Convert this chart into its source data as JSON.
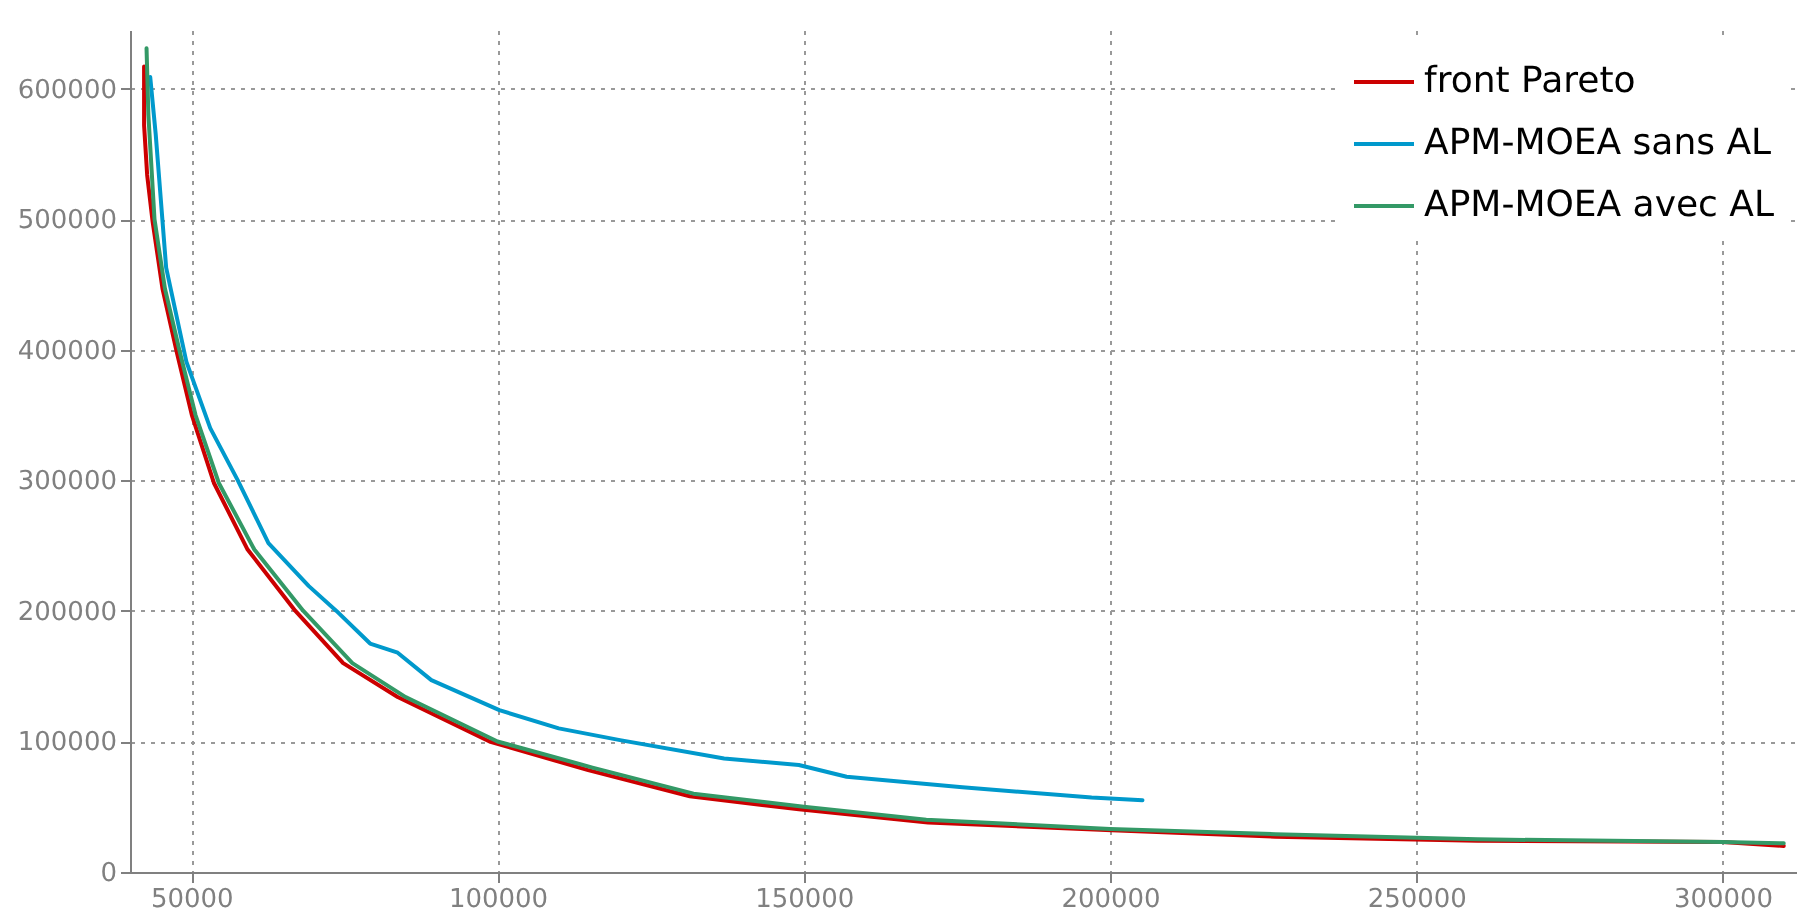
{
  "chart_data": {
    "type": "line",
    "xlim": [
      40000,
      312000
    ],
    "ylim": [
      0,
      645000
    ],
    "xticks": [
      50000,
      100000,
      150000,
      200000,
      250000,
      300000
    ],
    "yticks": [
      0,
      100000,
      200000,
      300000,
      400000,
      500000,
      600000
    ],
    "grid": true,
    "legend": "top right",
    "line_style": "solid",
    "marker": "none",
    "series": [
      {
        "name": "front Pareto",
        "color": "#cc0000",
        "x": [
          42300,
          42300,
          42800,
          43700,
          45300,
          47700,
          50100,
          53700,
          59200,
          67000,
          74800,
          83700,
          98700,
          114800,
          131400,
          149200,
          170300,
          200300,
          227000,
          260000,
          300000,
          310000
        ],
        "values": [
          617000,
          572000,
          534000,
          498000,
          447000,
          397000,
          350000,
          298000,
          247000,
          200000,
          160000,
          134000,
          100000,
          78000,
          58000,
          48000,
          38000,
          32000,
          27000,
          24000,
          23000,
          20000
        ]
      },
      {
        "name": "APM-MOEA sans AL",
        "color": "#0099cc",
        "x": [
          43300,
          44200,
          45900,
          49200,
          53100,
          57600,
          62600,
          69200,
          73700,
          79200,
          83700,
          89200,
          100300,
          110000,
          120000,
          137000,
          149200,
          157000,
          175900,
          197000,
          205300
        ],
        "values": [
          609000,
          565000,
          463000,
          391000,
          340000,
          300000,
          252000,
          219000,
          200000,
          175000,
          168000,
          147000,
          124000,
          110000,
          101000,
          87000,
          82000,
          73000,
          65000,
          57000,
          55000
        ]
      },
      {
        "name": "APM-MOEA avec AL",
        "color": "#339966",
        "x": [
          42700,
          43000,
          44000,
          45700,
          48200,
          50700,
          54500,
          60300,
          68300,
          76300,
          85000,
          100000,
          115500,
          132000,
          150000,
          170000,
          200000,
          227000,
          260000,
          300000,
          310000
        ],
        "values": [
          631000,
          580000,
          500000,
          447000,
          397000,
          350000,
          298000,
          247000,
          200000,
          160000,
          134000,
          100000,
          80000,
          60000,
          50000,
          40000,
          33000,
          29000,
          25000,
          23000,
          22000
        ]
      }
    ]
  }
}
